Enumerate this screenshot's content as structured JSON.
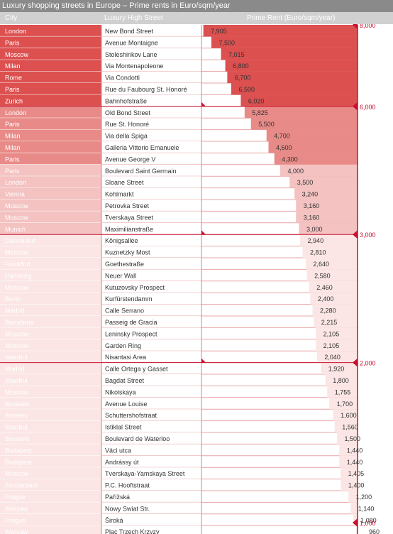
{
  "title": "Luxury shopping streets in Europe – Prime rents in Euro/sqm/year",
  "headers": {
    "city": "City",
    "street": "Luxury High Street",
    "rent": "Prime Rent (Euro/sqm/year)"
  },
  "colors": {
    "title_bg": "#8a8a8a",
    "header_bg": "#d0d0d0",
    "band_above_6000": "#dc5050",
    "band_4000_6000": "#e88b88",
    "band_3000_4000": "#f3c2c1",
    "band_below_3000": "#fbe6e5",
    "accent": "#c8102e"
  },
  "chart_data": {
    "type": "table",
    "columns": [
      "City",
      "Luxury High Street",
      "Prime Rent (Euro/sqm/year)"
    ],
    "axis": {
      "ticks": [
        1000,
        2000,
        3000,
        6000,
        8000
      ],
      "tick_labels": [
        "1,000",
        "2,000",
        "3,000",
        "6,000",
        "8,000"
      ]
    },
    "rows": [
      {
        "city": "London",
        "street": "New Bond Street",
        "rent": 7905,
        "label": "7,905"
      },
      {
        "city": "Paris",
        "street": "Avenue Montaigne",
        "rent": 7500,
        "label": "7,500"
      },
      {
        "city": "Moscow",
        "street": "Stoleshinkov Lane",
        "rent": 7015,
        "label": "7,015"
      },
      {
        "city": "Milan",
        "street": "Via Montenapoleone",
        "rent": 6800,
        "label": "6,800"
      },
      {
        "city": "Rome",
        "street": "Via Condotti",
        "rent": 6700,
        "label": "6,700"
      },
      {
        "city": "Paris",
        "street": "Rue du Faubourg St. Honoré",
        "rent": 6500,
        "label": "6,500"
      },
      {
        "city": "Zurich",
        "street": "Bahnhofstraße",
        "rent": 6020,
        "label": "6,020"
      },
      {
        "city": "London",
        "street": "Old Bond Street",
        "rent": 5825,
        "label": "5,825"
      },
      {
        "city": "Paris",
        "street": "Rue St. Honoré",
        "rent": 5500,
        "label": "5,500"
      },
      {
        "city": "Milan",
        "street": "Via della Spiga",
        "rent": 4700,
        "label": "4,700"
      },
      {
        "city": "Milan",
        "street": "Galleria Vittorio Emanuele",
        "rent": 4600,
        "label": "4,600"
      },
      {
        "city": "Paris",
        "street": "Avenue George V",
        "rent": 4300,
        "label": "4,300"
      },
      {
        "city": "Paris",
        "street": "Boulevard Saint Germain",
        "rent": 4000,
        "label": "4,000"
      },
      {
        "city": "London",
        "street": "Sloane Street",
        "rent": 3500,
        "label": "3,500"
      },
      {
        "city": "Vienna",
        "street": "Kohlmarkt",
        "rent": 3240,
        "label": "3,240"
      },
      {
        "city": "Moscow",
        "street": "Petrovka Street",
        "rent": 3160,
        "label": "3,160"
      },
      {
        "city": "Moscow",
        "street": "Tverskaya Street",
        "rent": 3160,
        "label": "3,160"
      },
      {
        "city": "Munich",
        "street": "Maximilianstraße",
        "rent": 3000,
        "label": "3,000"
      },
      {
        "city": "Düsseldorf",
        "street": "Königsallee",
        "rent": 2940,
        "label": "2,940"
      },
      {
        "city": "Moscow",
        "street": "Kuznetzky Most",
        "rent": 2810,
        "label": "2,810"
      },
      {
        "city": "Frankfurt",
        "street": "Goethestraße",
        "rent": 2640,
        "label": "2,640"
      },
      {
        "city": "Hamburg",
        "street": "Neuer Wall",
        "rent": 2580,
        "label": "2,580"
      },
      {
        "city": "Moscow",
        "street": "Kutuzovsky Prospect",
        "rent": 2460,
        "label": "2,460"
      },
      {
        "city": "Berlin",
        "street": "Kurfürstendamm",
        "rent": 2400,
        "label": "2,400"
      },
      {
        "city": "Madrid",
        "street": "Calle Serrano",
        "rent": 2280,
        "label": "2,280"
      },
      {
        "city": "Barcelona",
        "street": "Passeig de Gracia",
        "rent": 2215,
        "label": "2,215"
      },
      {
        "city": "Moscow",
        "street": "Leninsky Prospect",
        "rent": 2105,
        "label": "2,105"
      },
      {
        "city": "Moscow",
        "street": "Garden Ring",
        "rent": 2105,
        "label": "2,105"
      },
      {
        "city": "Istanbul",
        "street": "Nisantasi Area",
        "rent": 2040,
        "label": "2,040"
      },
      {
        "city": "Madrid",
        "street": "Calle Ortega y Gasset",
        "rent": 1920,
        "label": "1,920"
      },
      {
        "city": "Istanbul",
        "street": "Bagdat Street",
        "rent": 1800,
        "label": "1,800"
      },
      {
        "city": "Moscow",
        "street": "Nikolskaya",
        "rent": 1755,
        "label": "1,755"
      },
      {
        "city": "Brussels",
        "street": "Avenue Louise",
        "rent": 1700,
        "label": "1,700"
      },
      {
        "city": "Antwerp",
        "street": "Schuttershofstraat",
        "rent": 1600,
        "label": "1,600"
      },
      {
        "city": "Istanbul",
        "street": "Istiklal Street",
        "rent": 1560,
        "label": "1,560"
      },
      {
        "city": "Brussels",
        "street": "Boulevard de Waterloo",
        "rent": 1500,
        "label": "1,500"
      },
      {
        "city": "Budapest",
        "street": "Váci utca",
        "rent": 1440,
        "label": "1,440"
      },
      {
        "city": "Budapest",
        "street": "Andrássy út",
        "rent": 1440,
        "label": "1,440"
      },
      {
        "city": "Moscow",
        "street": "Tverskaya-Yamskaya Street",
        "rent": 1405,
        "label": "1,405"
      },
      {
        "city": "Amsterdam",
        "street": "P.C. Hooftstraat",
        "rent": 1400,
        "label": "1,400"
      },
      {
        "city": "Prague",
        "street": "Pařížská",
        "rent": 1200,
        "label": "1,200"
      },
      {
        "city": "Warsaw",
        "street": "Nowy Swiat Str.",
        "rent": 1140,
        "label": "1,140"
      },
      {
        "city": "Prague",
        "street": "Široká",
        "rent": 1080,
        "label": "1,080"
      },
      {
        "city": "Warsaw",
        "street": "Plac Trzech Krzyzy",
        "rent": 960,
        "label": "960"
      }
    ]
  }
}
